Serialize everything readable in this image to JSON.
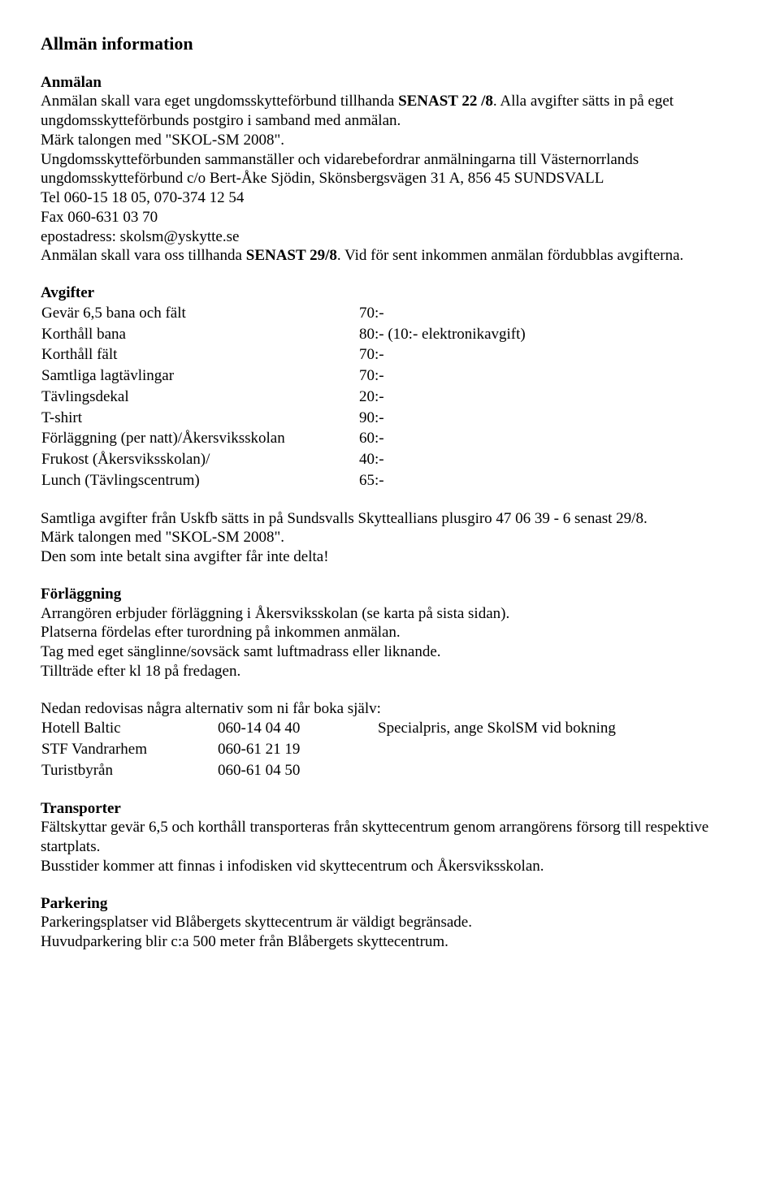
{
  "title": "Allmän information",
  "sections": {
    "anmalan": {
      "heading": "Anmälan",
      "body": "Anmälan skall vara eget ungdomsskytteförbund tillhanda SENAST 22 /8. Alla avgifter sätts in på eget ungdomsskytteförbunds postgiro i samband med anmälan.\nMärk talongen med \"SKOL-SM 2008\".\nUngdomsskytteförbunden sammanställer och vidarebefordrar anmälningarna till Västernorrlands ungdomsskytteförbund c/o Bert-Åke Sjödin, Skönsbergsvägen 31 A, 856 45 SUNDSVALL\nTel 060-15 18 05, 070-374 12 54\nFax 060-631 03 70\nepostadress: skolsm@yskytte.se\nAnmälan skall vara oss tillhanda SENAST 29/8. Vid för sent inkommen anmälan fördubblas avgifterna."
    },
    "avgifter": {
      "heading": "Avgifter",
      "items": [
        {
          "label": "Gevär 6,5 bana och fält",
          "value": "70:-"
        },
        {
          "label": "Korthåll bana",
          "value": "80:- (10:- elektronikavgift)"
        },
        {
          "label": "Korthåll fält",
          "value": "70:-"
        },
        {
          "label": "Samtliga lagtävlingar",
          "value": "70:-"
        },
        {
          "label": "Tävlingsdekal",
          "value": "20:-"
        },
        {
          "label": "T-shirt",
          "value": "90:-"
        },
        {
          "label": "Förläggning (per natt)/Åkersviksskolan",
          "value": "60:-"
        },
        {
          "label": "Frukost (Åkersviksskolan)/",
          "value": "40:-"
        },
        {
          "label": "Lunch (Tävlingscentrum)",
          "value": "65:-"
        }
      ],
      "footer": "Samtliga avgifter från Uskfb sätts in på  Sundsvalls Skytteallians plusgiro 47 06 39 - 6 senast 29/8.\nMärk talongen med \"SKOL-SM 2008\".\nDen som inte betalt sina avgifter får inte delta!"
    },
    "forlaggning": {
      "heading": "Förläggning",
      "body": "Arrangören erbjuder förläggning i  Åkersviksskolan  (se karta på sista sidan).\nPlatserna fördelas efter turordning på inkommen anmälan.\nTag med eget sänglinne/sovsäck samt luftmadrass eller liknande.\nTillträde efter kl 18 på fredagen.",
      "alt_intro": "Nedan redovisas några alternativ som ni får boka själv:",
      "alternatives": [
        {
          "name": "Hotell Baltic",
          "phone": "060-14 04 40",
          "note": "Specialpris, ange SkolSM vid bokning"
        },
        {
          "name": "STF Vandrarhem",
          "phone": "060-61 21 19",
          "note": ""
        },
        {
          "name": "Turistbyrån",
          "phone": "060-61 04 50",
          "note": ""
        }
      ]
    },
    "transporter": {
      "heading": "Transporter",
      "body": "Fältskyttar gevär 6,5 och korthåll transporteras från skyttecentrum genom arrangörens försorg till respektive startplats.\nBusstider kommer att finnas i infodisken vid skyttecentrum och Åkersviksskolan."
    },
    "parkering": {
      "heading": "Parkering",
      "body": "Parkeringsplatser vid Blåbergets skyttecentrum är väldigt begränsade.\nHuvudparkering blir c:a 500 meter från Blåbergets skyttecentrum."
    }
  }
}
